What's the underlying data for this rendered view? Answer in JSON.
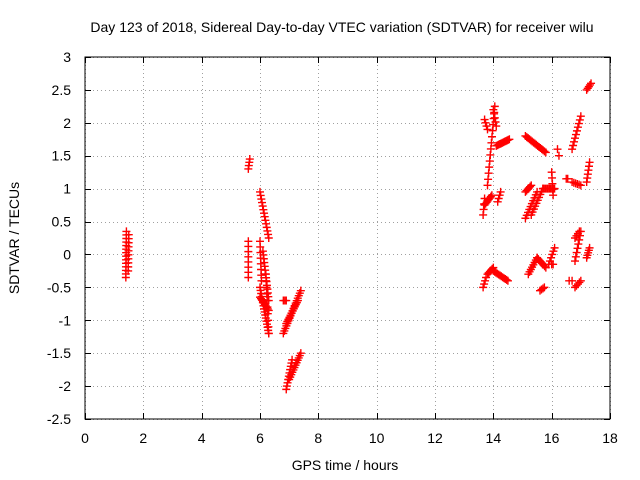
{
  "chart_data": {
    "type": "scatter",
    "title": "Day 123 of 2018, Sidereal Day-to-day VTEC variation (SDTVAR) for receiver wilu",
    "xlabel": "GPS time / hours",
    "ylabel": "SDTVAR / TECUs",
    "xlim": [
      0,
      18
    ],
    "ylim": [
      -2.5,
      3
    ],
    "xticks": [
      0,
      2,
      4,
      6,
      8,
      10,
      12,
      14,
      16,
      18
    ],
    "xtick_labels": [
      "0",
      "2",
      "4",
      "6",
      "8",
      "10",
      "12",
      "14",
      "16",
      "18"
    ],
    "yticks": [
      -2.5,
      -2,
      -1.5,
      -1,
      -0.5,
      0,
      0.5,
      1,
      1.5,
      2,
      2.5,
      3
    ],
    "ytick_labels": [
      "-2.5",
      "-2",
      "-1.5",
      "-1",
      "-0.5",
      "0",
      "0.5",
      "1",
      "1.5",
      "2",
      "2.5",
      "3"
    ],
    "grid": true,
    "marker": "+",
    "marker_color": "#ff0000",
    "series": [
      {
        "name": "SDTVAR",
        "segments": [
          {
            "t0": 1.4,
            "v0": -0.35,
            "t1": 1.42,
            "v1": 0.35,
            "n": 14
          },
          {
            "t0": 1.48,
            "v0": -0.25,
            "t1": 1.5,
            "v1": 0.3,
            "n": 10
          },
          {
            "t0": 5.6,
            "v0": 1.3,
            "t1": 5.65,
            "v1": 1.45,
            "n": 4
          },
          {
            "t0": 5.6,
            "v0": -0.35,
            "t1": 5.6,
            "v1": 0.2,
            "n": 8
          },
          {
            "t0": 6.0,
            "v0": 0.95,
            "t1": 6.3,
            "v1": 0.25,
            "n": 14
          },
          {
            "t0": 6.0,
            "v0": 0.2,
            "t1": 6.05,
            "v1": -0.4,
            "n": 8
          },
          {
            "t0": 6.0,
            "v0": -0.5,
            "t1": 6.3,
            "v1": -1.2,
            "n": 16
          },
          {
            "t0": 6.1,
            "v0": 0.05,
            "t1": 6.3,
            "v1": -0.7,
            "n": 14
          },
          {
            "t0": 6.0,
            "v0": -0.65,
            "t1": 6.3,
            "v1": -0.85,
            "n": 10
          },
          {
            "t0": 6.2,
            "v0": -0.3,
            "t1": 6.3,
            "v1": -1.2,
            "n": 10
          },
          {
            "t0": 6.8,
            "v0": -0.7,
            "t1": 6.9,
            "v1": -0.7,
            "n": 3
          },
          {
            "t0": 6.8,
            "v0": -1.2,
            "t1": 7.4,
            "v1": -0.55,
            "n": 18
          },
          {
            "t0": 6.9,
            "v0": -1.05,
            "t1": 7.3,
            "v1": -0.7,
            "n": 12
          },
          {
            "t0": 6.9,
            "v0": -2.05,
            "t1": 7.1,
            "v1": -1.6,
            "n": 10
          },
          {
            "t0": 7.0,
            "v0": -1.9,
            "t1": 7.4,
            "v1": -1.5,
            "n": 12
          },
          {
            "t0": 13.65,
            "v0": -0.5,
            "t1": 13.75,
            "v1": -0.35,
            "n": 4
          },
          {
            "t0": 13.8,
            "v0": -0.3,
            "t1": 14.0,
            "v1": -0.2,
            "n": 6
          },
          {
            "t0": 14.0,
            "v0": -0.25,
            "t1": 14.5,
            "v1": -0.4,
            "n": 12
          },
          {
            "t0": 13.65,
            "v0": 0.6,
            "t1": 13.7,
            "v1": 0.85,
            "n": 4
          },
          {
            "t0": 13.7,
            "v0": 0.75,
            "t1": 13.95,
            "v1": 0.9,
            "n": 8
          },
          {
            "t0": 13.7,
            "v0": 2.05,
            "t1": 13.8,
            "v1": 1.9,
            "n": 4
          },
          {
            "t0": 13.8,
            "v0": 1.05,
            "t1": 14.05,
            "v1": 2.25,
            "n": 14
          },
          {
            "t0": 14.0,
            "v0": 2.2,
            "t1": 14.1,
            "v1": 1.95,
            "n": 5
          },
          {
            "t0": 14.1,
            "v0": 1.65,
            "t1": 14.55,
            "v1": 1.75,
            "n": 12
          },
          {
            "t0": 14.15,
            "v0": 0.8,
            "t1": 14.25,
            "v1": 0.95,
            "n": 4
          },
          {
            "t0": 15.1,
            "v0": 1.8,
            "t1": 15.8,
            "v1": 1.55,
            "n": 16
          },
          {
            "t0": 15.1,
            "v0": 0.55,
            "t1": 15.5,
            "v1": 0.95,
            "n": 10
          },
          {
            "t0": 15.1,
            "v0": 0.95,
            "t1": 15.3,
            "v1": 1.05,
            "n": 6
          },
          {
            "t0": 15.3,
            "v0": 0.6,
            "t1": 15.7,
            "v1": 1.0,
            "n": 10
          },
          {
            "t0": 15.7,
            "v0": 1.0,
            "t1": 16.1,
            "v1": 1.0,
            "n": 10
          },
          {
            "t0": 16.0,
            "v0": 1.25,
            "t1": 16.05,
            "v1": 0.9,
            "n": 5
          },
          {
            "t0": 16.2,
            "v0": 1.6,
            "t1": 16.25,
            "v1": 1.5,
            "n": 2
          },
          {
            "t0": 15.2,
            "v0": -0.3,
            "t1": 15.5,
            "v1": -0.05,
            "n": 8
          },
          {
            "t0": 15.5,
            "v0": -0.05,
            "t1": 15.8,
            "v1": -0.2,
            "n": 8
          },
          {
            "t0": 15.6,
            "v0": -0.55,
            "t1": 15.75,
            "v1": -0.5,
            "n": 4
          },
          {
            "t0": 15.9,
            "v0": -0.15,
            "t1": 16.1,
            "v1": 0.1,
            "n": 6
          },
          {
            "t0": 16.0,
            "v0": -0.15,
            "t1": 16.05,
            "v1": -0.15,
            "n": 2
          },
          {
            "t0": 16.5,
            "v0": 1.15,
            "t1": 16.55,
            "v1": 1.15,
            "n": 2
          },
          {
            "t0": 16.6,
            "v0": -0.4,
            "t1": 16.7,
            "v1": -0.4,
            "n": 2
          },
          {
            "t0": 16.7,
            "v0": 1.1,
            "t1": 17.0,
            "v1": 1.05,
            "n": 6
          },
          {
            "t0": 16.7,
            "v0": 1.6,
            "t1": 17.0,
            "v1": 2.1,
            "n": 10
          },
          {
            "t0": 16.8,
            "v0": -0.5,
            "t1": 17.0,
            "v1": -0.4,
            "n": 5
          },
          {
            "t0": 16.8,
            "v0": -0.1,
            "t1": 17.0,
            "v1": 0.35,
            "n": 8
          },
          {
            "t0": 16.8,
            "v0": 0.25,
            "t1": 16.95,
            "v1": 0.35,
            "n": 4
          },
          {
            "t0": 17.2,
            "v0": 2.5,
            "t1": 17.35,
            "v1": 2.6,
            "n": 5
          },
          {
            "t0": 17.2,
            "v0": 1.1,
            "t1": 17.3,
            "v1": 1.4,
            "n": 6
          },
          {
            "t0": 17.2,
            "v0": -0.05,
            "t1": 17.3,
            "v1": 0.1,
            "n": 5
          }
        ]
      }
    ]
  }
}
